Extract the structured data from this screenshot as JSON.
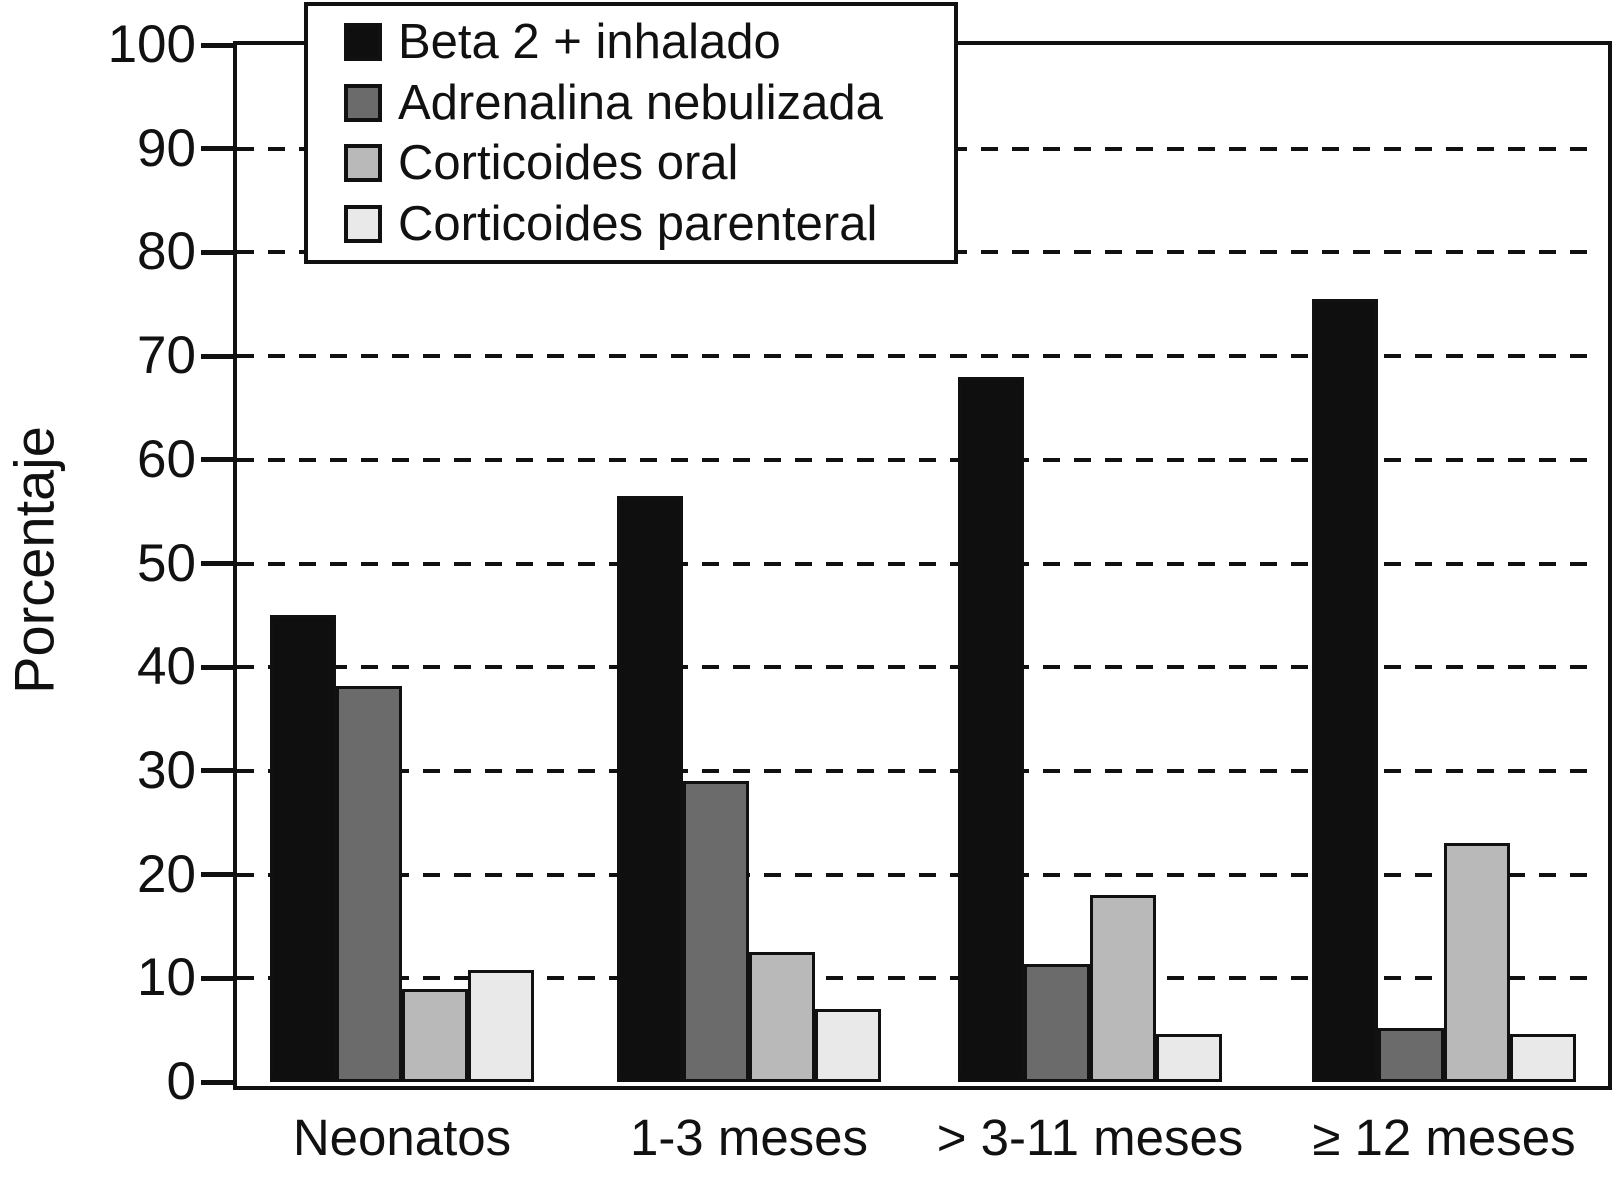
{
  "figure": {
    "background": "#ffffff",
    "frame_color": "#111111"
  },
  "chart_data": {
    "type": "bar",
    "title": "",
    "xlabel": "",
    "ylabel": "Porcentaje",
    "ylim": [
      0,
      100
    ],
    "ytick_step": 10,
    "ytick_labels": [
      "0",
      "10",
      "20",
      "30",
      "40",
      "50",
      "60",
      "70",
      "80",
      "90",
      "100"
    ],
    "grid": "horizontal-dashed",
    "legend_position": "top-left-inside",
    "categories": [
      "Neonatos",
      "1-3 meses",
      "> 3-11 meses",
      "≥ 12 meses"
    ],
    "series": [
      {
        "name": "Beta 2 + inhalado",
        "color": "#0f0f0f",
        "values": [
          45.0,
          56.5,
          68.0,
          75.5
        ]
      },
      {
        "name": "Adrenalina nebulizada",
        "color": "#6b6b6b",
        "values": [
          38.2,
          29.0,
          11.4,
          5.2
        ]
      },
      {
        "name": "Corticoides oral",
        "color": "#b9b9b9",
        "values": [
          9.0,
          12.5,
          18.0,
          23.0
        ]
      },
      {
        "name": "Corticoides parenteral",
        "color": "#e9e9e9",
        "values": [
          10.8,
          7.0,
          4.6,
          4.6
        ]
      }
    ]
  }
}
